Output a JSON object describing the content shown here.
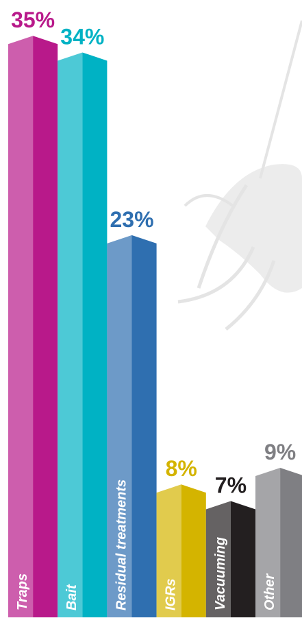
{
  "chart_data": {
    "type": "bar",
    "categories": [
      "Traps",
      "Bait",
      "Residual treatments",
      "IGRs",
      "Vacuuming",
      "Other"
    ],
    "values": [
      35,
      34,
      23,
      8,
      7,
      9
    ],
    "value_labels": [
      "35%",
      "34%",
      "23%",
      "8%",
      "7%",
      "9%"
    ],
    "colors": [
      "#b8198a",
      "#00b2c4",
      "#2f6fb0",
      "#d4b400",
      "#231f20",
      "#7f7f83"
    ],
    "ylim": [
      0,
      36
    ]
  }
}
